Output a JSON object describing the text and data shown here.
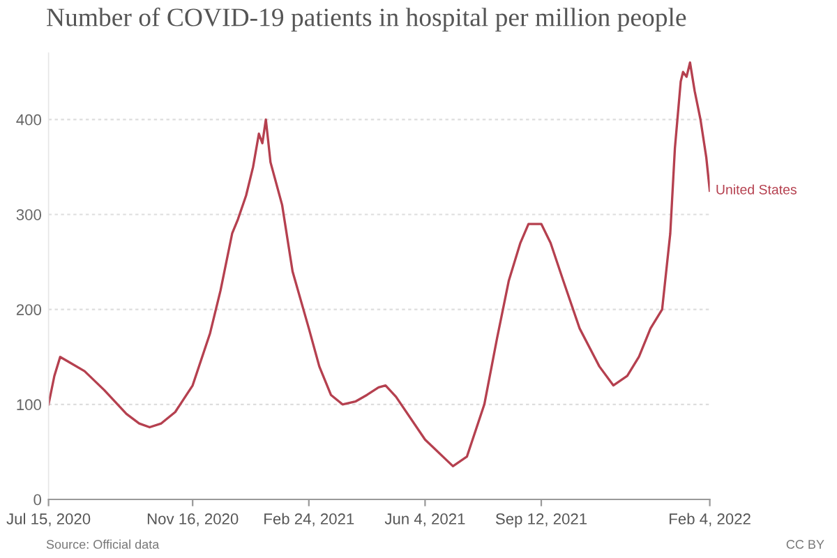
{
  "chart_data": {
    "type": "line",
    "title": "Number of COVID-19 patients in hospital per million people",
    "x": [
      "2020-07-15",
      "2020-07-20",
      "2020-07-25",
      "2020-08-01",
      "2020-08-15",
      "2020-09-01",
      "2020-09-20",
      "2020-10-01",
      "2020-10-10",
      "2020-10-20",
      "2020-11-01",
      "2020-11-16",
      "2020-12-01",
      "2020-12-10",
      "2020-12-20",
      "2020-12-25",
      "2021-01-01",
      "2021-01-07",
      "2021-01-12",
      "2021-01-15",
      "2021-01-18",
      "2021-01-22",
      "2021-02-01",
      "2021-02-10",
      "2021-02-24",
      "2021-03-05",
      "2021-03-15",
      "2021-03-25",
      "2021-04-05",
      "2021-04-15",
      "2021-04-25",
      "2021-05-01",
      "2021-05-10",
      "2021-06-04",
      "2021-06-28",
      "2021-07-10",
      "2021-07-25",
      "2021-08-05",
      "2021-08-15",
      "2021-08-25",
      "2021-09-01",
      "2021-09-12",
      "2021-09-20",
      "2021-10-01",
      "2021-10-15",
      "2021-11-01",
      "2021-11-13",
      "2021-11-25",
      "2021-12-05",
      "2021-12-15",
      "2021-12-25",
      "2022-01-01",
      "2022-01-05",
      "2022-01-10",
      "2022-01-12",
      "2022-01-15",
      "2022-01-18",
      "2022-01-22",
      "2022-01-27",
      "2022-02-01",
      "2022-02-04"
    ],
    "series": [
      {
        "name": "United States",
        "color": "#b5404f",
        "values": [
          100,
          130,
          150,
          145,
          135,
          115,
          90,
          80,
          76,
          80,
          92,
          120,
          175,
          220,
          280,
          295,
          320,
          350,
          385,
          375,
          400,
          355,
          310,
          240,
          180,
          140,
          110,
          100,
          103,
          110,
          118,
          120,
          108,
          63,
          35,
          45,
          100,
          170,
          230,
          270,
          290,
          290,
          270,
          230,
          180,
          140,
          120,
          130,
          150,
          180,
          200,
          280,
          370,
          440,
          450,
          445,
          460,
          430,
          400,
          360,
          325
        ]
      }
    ],
    "xlim": [
      "2020-07-15",
      "2022-02-04"
    ],
    "xticks": [
      {
        "value": "2020-07-15",
        "label": "Jul 15, 2020"
      },
      {
        "value": "2020-11-16",
        "label": "Nov 16, 2020"
      },
      {
        "value": "2021-02-24",
        "label": "Feb 24, 2021"
      },
      {
        "value": "2021-06-04",
        "label": "Jun 4, 2021"
      },
      {
        "value": "2021-09-12",
        "label": "Sep 12, 2021"
      },
      {
        "value": "2022-02-04",
        "label": "Feb 4, 2022"
      }
    ],
    "ylim": [
      0,
      470
    ],
    "yticks": [
      0,
      100,
      200,
      300,
      400
    ],
    "grid": "y",
    "legend": false,
    "marker": "none",
    "line_style": "solid",
    "annotations": [
      "Source: Official data",
      "CC BY"
    ]
  }
}
